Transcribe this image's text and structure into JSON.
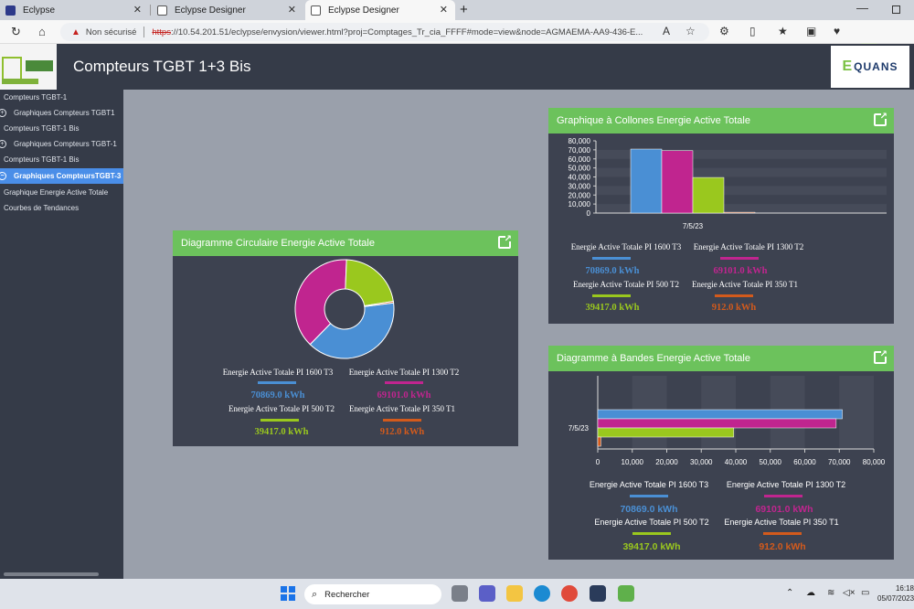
{
  "browser": {
    "tabs": [
      {
        "title": "Eclypse"
      },
      {
        "title": "Eclypse Designer"
      },
      {
        "title": "Eclypse Designer"
      }
    ],
    "security_label": "Non sécurisé",
    "url_scheme": "https",
    "url_rest": "://10.54.201.51/eclypse/envysion/viewer.html?proj=Comptages_Tr_cia_FFFF#mode=view&node=AGMAEMA-AA9-436-E..."
  },
  "header": {
    "title": "Compteurs TGBT 1+3 Bis",
    "brand": "QUANS",
    "brand_initial": "E"
  },
  "sidebar": {
    "items": [
      {
        "label": "Compteurs TGBT-1"
      },
      {
        "label": "Graphiques Compteurs TGBT1"
      },
      {
        "label": "Compteurs TGBT-1 Bis"
      },
      {
        "label": "Graphiques Compteurs TGBT-1"
      },
      {
        "label": "Compteurs TGBT-1 Bis"
      },
      {
        "label": "Graphiques CompteursTGBT-3"
      },
      {
        "label": "Graphique Energie Active Totale"
      },
      {
        "label": "Courbes de Tendances"
      }
    ]
  },
  "panels": {
    "donut": {
      "title": "Diagramme Circulaire Energie Active Totale"
    },
    "columns": {
      "title": "Graphique à Collones Energie Active Totale"
    },
    "bars": {
      "title": "Diagramme à Bandes Energie Active Totale"
    }
  },
  "legend": [
    {
      "name": "Energie Active Totale PI 1600 T3",
      "value": "70869.0 kWh",
      "color": "#4a8fd4"
    },
    {
      "name": "Energie Active Totale PI 1300 T2",
      "value": "69101.0 kWh",
      "color": "#c0258f"
    },
    {
      "name": "Energie Active Totale PI 500 T2",
      "value": "39417.0 kWh",
      "color": "#9ac81e"
    },
    {
      "name": "Energie Active Totale PI 350 T1",
      "value": "912.0 kWh",
      "color": "#d35a1c"
    }
  ],
  "chart_data": [
    {
      "type": "pie",
      "title": "Diagramme Circulaire Energie Active Totale",
      "categories": [
        "Energie Active Totale PI 1600 T3",
        "Energie Active Totale PI 1300 T2",
        "Energie Active Totale PI 500 T2",
        "Energie Active Totale PI 350 T1"
      ],
      "values": [
        70869,
        69101,
        39417,
        912
      ]
    },
    {
      "type": "bar",
      "title": "Graphique à Collones Energie Active Totale",
      "categories": [
        "7/5/23"
      ],
      "series": [
        {
          "name": "Energie Active Totale PI 1600 T3",
          "values": [
            70869
          ]
        },
        {
          "name": "Energie Active Totale PI 1300 T2",
          "values": [
            69101
          ]
        },
        {
          "name": "Energie Active Totale PI 500 T2",
          "values": [
            39417
          ]
        },
        {
          "name": "Energie Active Totale PI 350 T1",
          "values": [
            912
          ]
        }
      ],
      "ylim": [
        0,
        80000
      ],
      "yticks": [
        "0",
        "10,000",
        "20,000",
        "30,000",
        "40,000",
        "50,000",
        "60,000",
        "70,000",
        "80,000"
      ]
    },
    {
      "type": "bar",
      "orientation": "horizontal",
      "title": "Diagramme à Bandes Energie Active Totale",
      "categories": [
        "7/5/23"
      ],
      "series": [
        {
          "name": "Energie Active Totale PI 1600 T3",
          "values": [
            70869
          ]
        },
        {
          "name": "Energie Active Totale PI 1300 T2",
          "values": [
            69101
          ]
        },
        {
          "name": "Energie Active Totale PI 500 T2",
          "values": [
            39417
          ]
        },
        {
          "name": "Energie Active Totale PI 350 T1",
          "values": [
            912
          ]
        }
      ],
      "xlim": [
        0,
        80000
      ],
      "xticks": [
        "0",
        "10,000",
        "20,000",
        "30,000",
        "40,000",
        "50,000",
        "60,000",
        "70,000",
        "80,000"
      ]
    }
  ],
  "taskbar": {
    "search_placeholder": "Rechercher",
    "time": "16:18",
    "date": "05/07/2023"
  }
}
